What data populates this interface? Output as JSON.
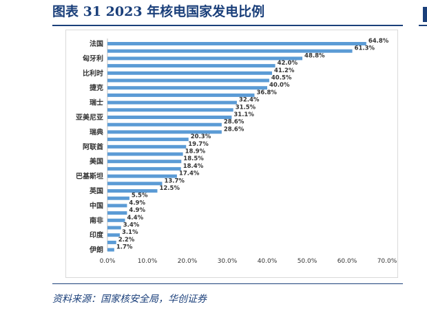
{
  "figure": {
    "title": "图表 31    2023 年核电国家发电比例",
    "source": "资料来源：国家核安全局，华创证券"
  },
  "colors": {
    "bar": "#5b9bd5",
    "accent": "#1a3f7a"
  },
  "chart_data": {
    "type": "bar",
    "orientation": "horizontal",
    "categories": [
      "法国",
      "",
      "匈牙利",
      "",
      "比利时",
      "",
      "捷克",
      "",
      "瑞士",
      "",
      "亚美尼亚",
      "",
      "瑞典",
      "",
      "阿联酋",
      "",
      "美国",
      "",
      "巴基斯坦",
      "",
      "英国",
      "",
      "中国",
      "",
      "南非",
      "",
      "印度",
      "",
      "伊朗"
    ],
    "values": [
      64.8,
      61.3,
      48.8,
      42.0,
      41.2,
      40.5,
      40.0,
      36.8,
      32.4,
      31.5,
      31.1,
      28.6,
      28.6,
      20.3,
      19.7,
      18.9,
      18.5,
      18.4,
      17.4,
      13.7,
      12.5,
      5.5,
      4.9,
      4.9,
      4.4,
      3.4,
      3.1,
      2.2,
      1.7
    ],
    "value_labels": [
      "64.8%",
      "61.3%",
      "48.8%",
      "42.0%",
      "41.2%",
      "40.5%",
      "40.0%",
      "36.8%",
      "32.4%",
      "31.5%",
      "31.1%",
      "28.6%",
      "28.6%",
      "20.3%",
      "19.7%",
      "18.9%",
      "18.5%",
      "18.4%",
      "17.4%",
      "13.7%",
      "12.5%",
      "5.5%",
      "4.9%",
      "4.9%",
      "4.4%",
      "3.4%",
      "3.1%",
      "2.2%",
      "1.7%"
    ],
    "x_ticks": [
      "0.0%",
      "10.0%",
      "20.0%",
      "30.0%",
      "40.0%",
      "50.0%",
      "60.0%",
      "70.0%"
    ],
    "xlim": [
      0,
      70
    ],
    "grid": false,
    "legend": "none",
    "xlabel": "",
    "ylabel": ""
  }
}
